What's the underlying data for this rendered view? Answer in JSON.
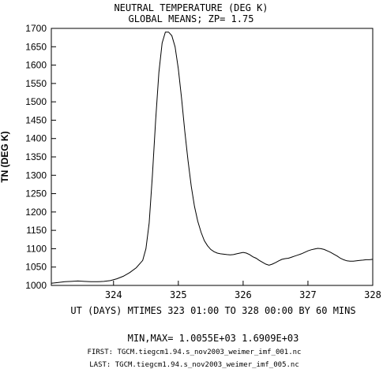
{
  "header": {
    "title": "NEUTRAL TEMPERATURE (DEG K)",
    "subtitle": "GLOBAL MEANS; ZP=   1.75"
  },
  "footer": {
    "minmax": "MIN,MAX=   1.0055E+03   1.6909E+03",
    "first": "FIRST: TGCM.tiegcm1.94.s_nov2003_weimer_imf_001.nc",
    "last": "LAST:   TGCM.tiegcm1.94.s_nov2003_weimer_imf_005.nc"
  },
  "chart_data": {
    "type": "line",
    "title": "NEUTRAL TEMPERATURE (DEG K)",
    "subtitle": "GLOBAL MEANS; ZP=   1.75",
    "xlabel": "UT (DAYS) MTIMES 323 01:00 TO 328 00:00 BY    60 MINS",
    "ylabel": "TN (DEG K)",
    "xlim": [
      323.04,
      328.0
    ],
    "ylim": [
      1000,
      1700
    ],
    "xticks": [
      324,
      325,
      326,
      327,
      328
    ],
    "yticks": [
      1000,
      1050,
      1100,
      1150,
      1200,
      1250,
      1300,
      1350,
      1400,
      1450,
      1500,
      1550,
      1600,
      1650,
      1700
    ],
    "grid": false,
    "series": [
      {
        "x": [
          323.04,
          323.15,
          323.25,
          323.35,
          323.45,
          323.55,
          323.65,
          323.75,
          323.85,
          323.95,
          324.05,
          324.15,
          324.25,
          324.35,
          324.45,
          324.5,
          324.55,
          324.6,
          324.65,
          324.7,
          324.75,
          324.8,
          324.85,
          324.9,
          324.95,
          325.0,
          325.05,
          325.1,
          325.15,
          325.2,
          325.25,
          325.3,
          325.35,
          325.4,
          325.45,
          325.5,
          325.55,
          325.6,
          325.65,
          325.7,
          325.75,
          325.8,
          325.85,
          325.9,
          325.95,
          326.0,
          326.05,
          326.1,
          326.15,
          326.2,
          326.25,
          326.3,
          326.35,
          326.4,
          326.45,
          326.5,
          326.55,
          326.6,
          326.65,
          326.7,
          326.75,
          326.8,
          326.85,
          326.9,
          326.95,
          327.0,
          327.05,
          327.1,
          327.15,
          327.2,
          327.25,
          327.3,
          327.35,
          327.4,
          327.45,
          327.5,
          327.55,
          327.6,
          327.65,
          327.7,
          327.75,
          327.8,
          327.85,
          327.9,
          327.95,
          328.0
        ],
        "values": [
          1006,
          1008,
          1010,
          1011,
          1012,
          1011,
          1010,
          1010,
          1011,
          1013,
          1018,
          1025,
          1035,
          1048,
          1068,
          1100,
          1170,
          1300,
          1450,
          1580,
          1660,
          1690,
          1690,
          1680,
          1650,
          1590,
          1510,
          1420,
          1340,
          1270,
          1215,
          1175,
          1145,
          1122,
          1108,
          1098,
          1092,
          1088,
          1086,
          1085,
          1084,
          1083,
          1084,
          1086,
          1088,
          1090,
          1088,
          1084,
          1078,
          1074,
          1068,
          1063,
          1058,
          1055,
          1058,
          1062,
          1067,
          1071,
          1073,
          1074,
          1077,
          1080,
          1083,
          1086,
          1090,
          1094,
          1097,
          1099,
          1101,
          1100,
          1098,
          1094,
          1090,
          1085,
          1080,
          1074,
          1070,
          1067,
          1066,
          1066,
          1067,
          1068,
          1069,
          1070,
          1070,
          1071
        ]
      }
    ]
  }
}
